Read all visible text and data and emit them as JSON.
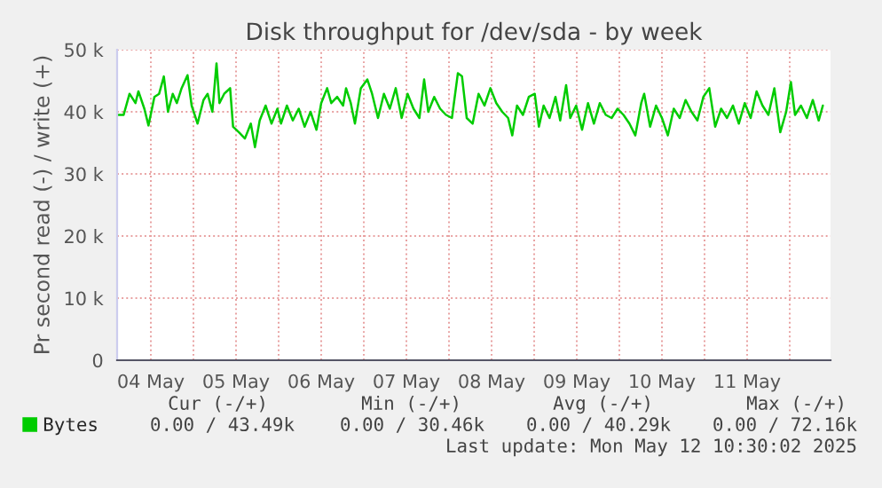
{
  "chart_data": {
    "type": "line",
    "title": "Disk throughput for /dev/sda - by week",
    "ylabel": "Pr second read (-) / write (+)",
    "x": [
      "2025-05-04T02:40",
      "2025-05-04T04:20",
      "2025-05-04T06:00",
      "2025-05-04T07:40",
      "2025-05-04T08:30",
      "2025-05-04T10:10",
      "2025-05-04T11:20",
      "2025-05-04T13:00",
      "2025-05-04T14:20",
      "2025-05-04T15:40",
      "2025-05-04T16:50",
      "2025-05-04T18:10",
      "2025-05-04T19:20",
      "2025-05-04T20:40",
      "2025-05-04T22:20",
      "2025-05-04T23:30",
      "2025-05-05T01:10",
      "2025-05-05T02:50",
      "2025-05-05T04:00",
      "2025-05-05T05:20",
      "2025-05-05T06:30",
      "2025-05-05T07:20",
      "2025-05-05T08:40",
      "2025-05-05T10:20",
      "2025-05-05T11:10",
      "2025-05-05T12:50",
      "2025-05-05T14:30",
      "2025-05-05T16:10",
      "2025-05-05T17:20",
      "2025-05-05T18:40",
      "2025-05-05T20:20",
      "2025-05-05T22:00",
      "2025-05-05T23:40",
      "2025-05-06T00:40",
      "2025-05-06T02:20",
      "2025-05-06T04:00",
      "2025-05-06T05:40",
      "2025-05-06T07:20",
      "2025-05-06T09:00",
      "2025-05-06T10:40",
      "2025-05-06T12:00",
      "2025-05-06T13:40",
      "2025-05-06T14:50",
      "2025-05-06T16:30",
      "2025-05-06T18:10",
      "2025-05-06T19:00",
      "2025-05-06T20:20",
      "2025-05-06T21:30",
      "2025-05-06T23:10",
      "2025-05-07T01:00",
      "2025-05-07T02:20",
      "2025-05-07T04:00",
      "2025-05-07T05:40",
      "2025-05-07T07:20",
      "2025-05-07T09:00",
      "2025-05-07T10:40",
      "2025-05-07T12:20",
      "2025-05-07T14:00",
      "2025-05-07T15:40",
      "2025-05-07T17:00",
      "2025-05-07T18:10",
      "2025-05-07T19:50",
      "2025-05-07T21:30",
      "2025-05-07T23:10",
      "2025-05-08T00:50",
      "2025-05-08T02:30",
      "2025-05-08T03:40",
      "2025-05-08T05:00",
      "2025-05-08T06:40",
      "2025-05-08T08:20",
      "2025-05-08T10:00",
      "2025-05-08T11:40",
      "2025-05-08T13:20",
      "2025-05-08T15:00",
      "2025-05-08T16:40",
      "2025-05-08T17:50",
      "2025-05-08T19:10",
      "2025-05-08T20:50",
      "2025-05-08T22:30",
      "2025-05-09T00:10",
      "2025-05-09T01:20",
      "2025-05-09T02:40",
      "2025-05-09T04:20",
      "2025-05-09T06:00",
      "2025-05-09T07:20",
      "2025-05-09T09:00",
      "2025-05-09T10:10",
      "2025-05-09T11:50",
      "2025-05-09T13:30",
      "2025-05-09T15:10",
      "2025-05-09T16:50",
      "2025-05-09T18:30",
      "2025-05-09T20:10",
      "2025-05-09T21:50",
      "2025-05-09T23:30",
      "2025-05-10T01:10",
      "2025-05-10T02:50",
      "2025-05-10T04:30",
      "2025-05-10T06:10",
      "2025-05-10T07:00",
      "2025-05-10T08:40",
      "2025-05-10T10:20",
      "2025-05-10T12:00",
      "2025-05-10T13:40",
      "2025-05-10T15:20",
      "2025-05-10T17:00",
      "2025-05-10T18:40",
      "2025-05-10T20:20",
      "2025-05-10T22:00",
      "2025-05-10T23:40",
      "2025-05-11T01:20",
      "2025-05-11T03:00",
      "2025-05-11T04:40",
      "2025-05-11T06:20",
      "2025-05-11T08:00",
      "2025-05-11T09:40",
      "2025-05-11T11:20",
      "2025-05-11T13:00",
      "2025-05-11T14:40",
      "2025-05-11T16:20",
      "2025-05-11T18:00",
      "2025-05-11T19:40",
      "2025-05-11T21:20",
      "2025-05-11T23:00",
      "2025-05-12T00:20",
      "2025-05-12T01:30",
      "2025-05-12T03:10",
      "2025-05-12T04:50",
      "2025-05-12T06:30",
      "2025-05-12T08:10",
      "2025-05-12T09:20"
    ],
    "series": [
      {
        "name": "Bytes",
        "color": "#00cc00",
        "values": [
          39500,
          39500,
          42900,
          41400,
          43300,
          40500,
          37800,
          42400,
          42900,
          45700,
          40000,
          42900,
          41400,
          43800,
          45900,
          41000,
          38100,
          41900,
          42900,
          40000,
          47800,
          41400,
          42900,
          43800,
          37600,
          36700,
          35700,
          38100,
          34300,
          38600,
          41000,
          38100,
          40500,
          38100,
          41000,
          38600,
          40500,
          37600,
          40000,
          37100,
          41400,
          43800,
          41400,
          42400,
          41000,
          43800,
          41400,
          38100,
          43800,
          45200,
          42900,
          39000,
          42900,
          40500,
          43800,
          39000,
          42900,
          40500,
          39000,
          45200,
          40000,
          42400,
          40500,
          39500,
          39000,
          46200,
          45700,
          39000,
          38100,
          42900,
          41000,
          43800,
          41400,
          40000,
          39000,
          36200,
          41000,
          39500,
          42400,
          42900,
          37600,
          41000,
          39000,
          42400,
          38600,
          44300,
          39000,
          41000,
          37100,
          41400,
          38100,
          41400,
          39500,
          39000,
          40500,
          39500,
          38100,
          36200,
          41400,
          42900,
          37600,
          41000,
          39000,
          36200,
          40500,
          39000,
          41900,
          40000,
          38600,
          42400,
          43800,
          37600,
          40500,
          39000,
          41000,
          38100,
          41400,
          39000,
          43300,
          41000,
          39500,
          43800,
          36700,
          40000,
          44800,
          39500,
          41000,
          39000,
          41900,
          38600,
          41000
        ]
      }
    ],
    "xlim": [
      "2025-05-04T02:30",
      "2025-05-12T11:30"
    ],
    "xticks": [
      {
        "value": "2025-05-04T12:00",
        "label": "04 May"
      },
      {
        "value": "2025-05-05T00:00",
        "label": null
      },
      {
        "value": "2025-05-05T12:00",
        "label": "05 May"
      },
      {
        "value": "2025-05-06T00:00",
        "label": null
      },
      {
        "value": "2025-05-06T12:00",
        "label": "06 May"
      },
      {
        "value": "2025-05-07T00:00",
        "label": null
      },
      {
        "value": "2025-05-07T12:00",
        "label": "07 May"
      },
      {
        "value": "2025-05-08T00:00",
        "label": null
      },
      {
        "value": "2025-05-08T12:00",
        "label": "08 May"
      },
      {
        "value": "2025-05-09T00:00",
        "label": null
      },
      {
        "value": "2025-05-09T12:00",
        "label": "09 May"
      },
      {
        "value": "2025-05-10T00:00",
        "label": null
      },
      {
        "value": "2025-05-10T12:00",
        "label": "10 May"
      },
      {
        "value": "2025-05-11T00:00",
        "label": null
      },
      {
        "value": "2025-05-11T12:00",
        "label": "11 May"
      },
      {
        "value": "2025-05-12T00:00",
        "label": null
      }
    ],
    "ylim": [
      0,
      50000
    ],
    "yticks": [
      0,
      {
        "value": 10000,
        "label": "10 k"
      },
      {
        "value": 20000,
        "label": "20 k"
      },
      {
        "value": 30000,
        "label": "30 k"
      },
      {
        "value": 40000,
        "label": "40 k"
      },
      {
        "value": 50000,
        "label": "50 k"
      }
    ],
    "grid": true,
    "legend": "bottom",
    "marker": "none",
    "line_style": "solid",
    "annotations": [
      "Cur (-/+)",
      "Min (-/+)",
      "Avg (-/+)",
      "Max (-/+)",
      "0.00 / 43.49k",
      "0.00 / 30.46k",
      "0.00 / 40.29k",
      "0.00 / 72.16k",
      "Last update: Mon May 12 10:30:02 2025"
    ]
  }
}
